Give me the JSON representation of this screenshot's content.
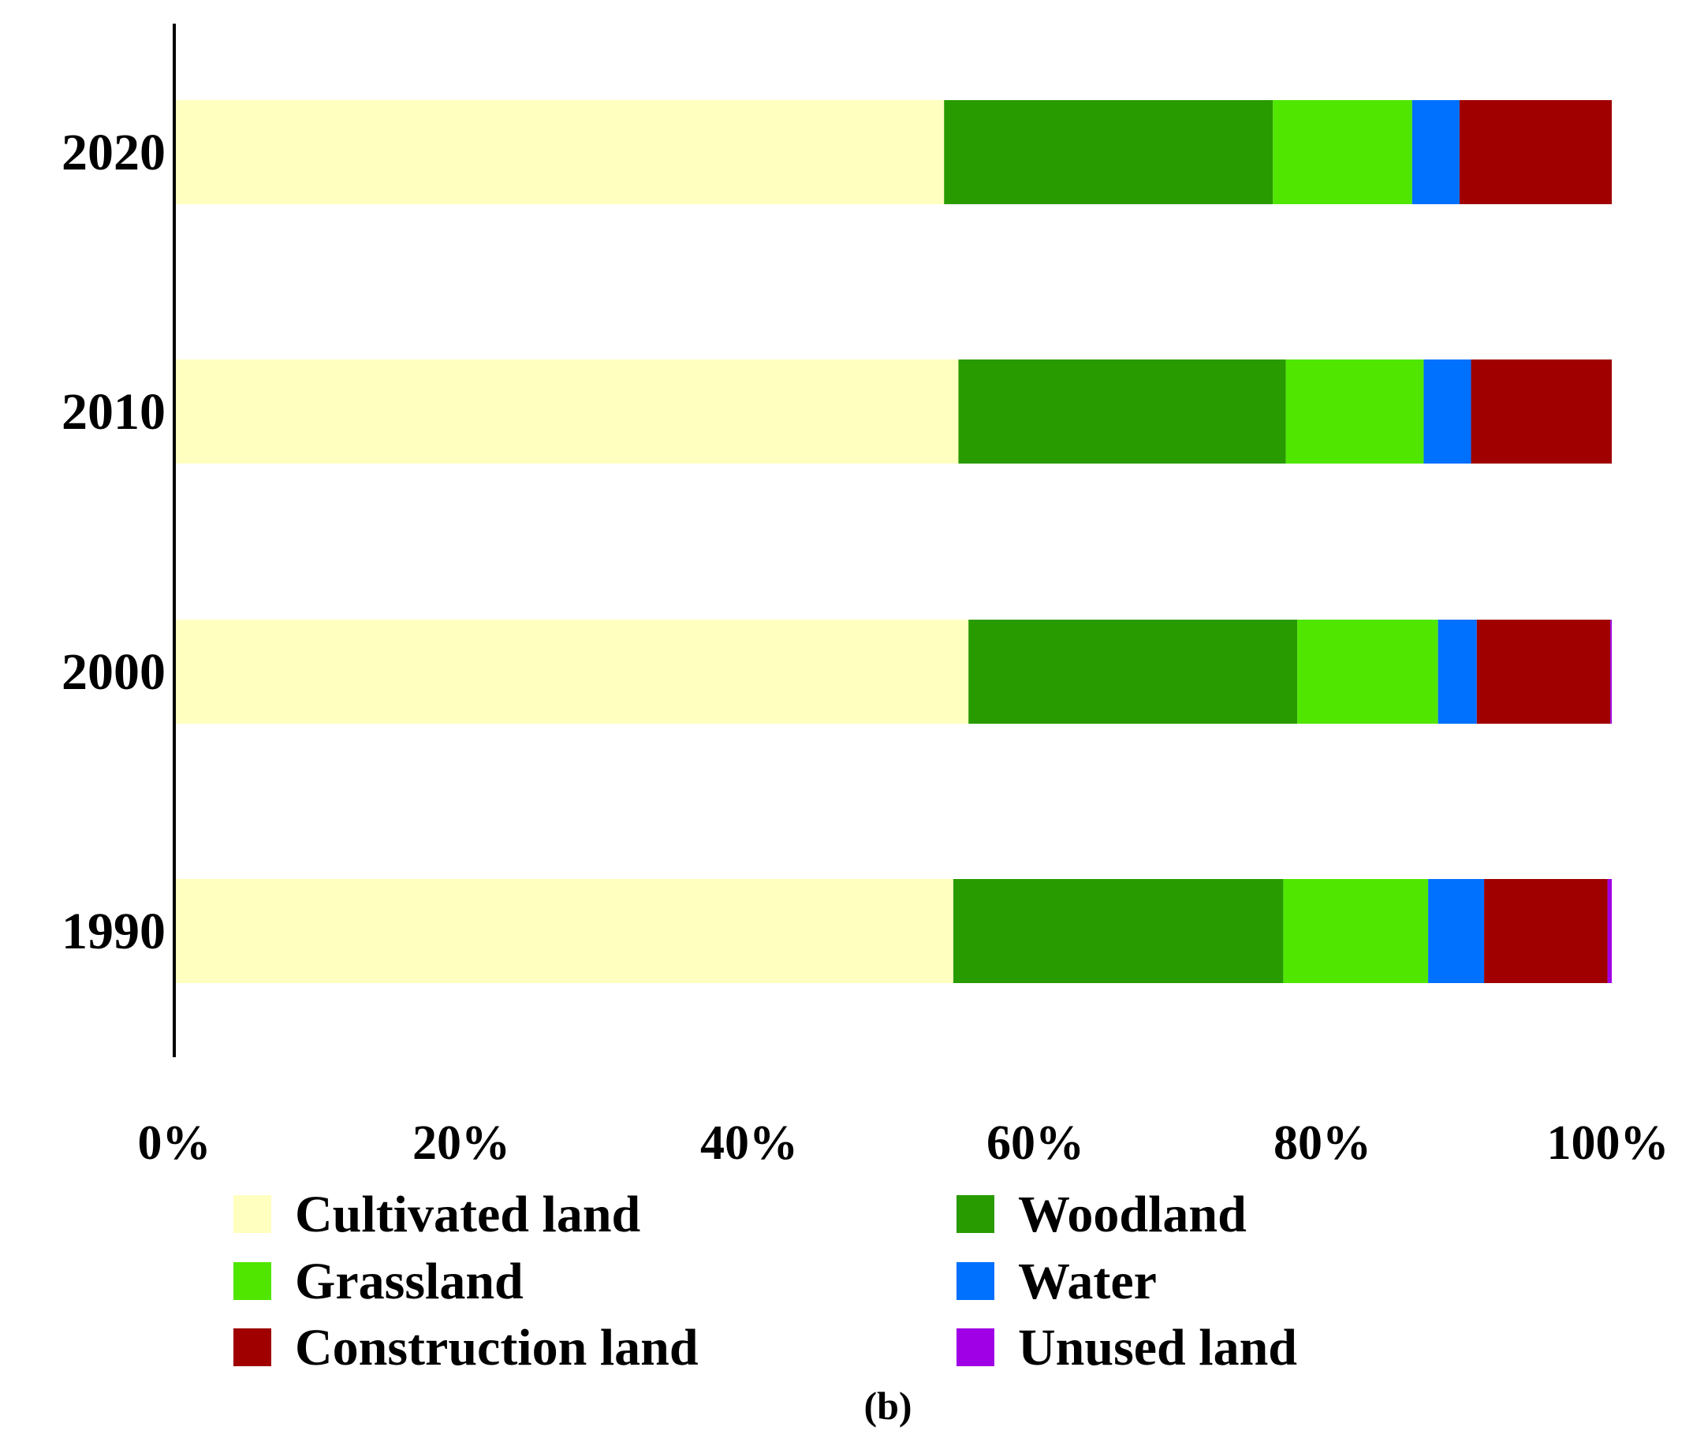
{
  "chart_data": {
    "type": "bar",
    "orientation": "horizontal",
    "stacked": true,
    "normalized": true,
    "categories": [
      "2020",
      "2010",
      "2000",
      "1990"
    ],
    "series": [
      {
        "name": "Cultivated land",
        "color": "#FFFFC0",
        "values": [
          53.5,
          54.5,
          55.2,
          54.2
        ]
      },
      {
        "name": "Woodland",
        "color": "#289B00",
        "values": [
          22.9,
          22.8,
          22.9,
          23.0
        ]
      },
      {
        "name": "Grassland",
        "color": "#50E600",
        "values": [
          9.7,
          9.6,
          9.8,
          10.1
        ]
      },
      {
        "name": "Water",
        "color": "#0070FF",
        "values": [
          3.3,
          3.3,
          2.7,
          3.9
        ]
      },
      {
        "name": "Construction land",
        "color": "#A00000",
        "values": [
          10.6,
          9.8,
          9.3,
          8.6
        ]
      },
      {
        "name": "Unused land",
        "color": "#A000E6",
        "values": [
          0.0,
          0.0,
          0.1,
          0.3
        ]
      }
    ],
    "xticks": [
      "0%",
      "20%",
      "40%",
      "60%",
      "80%",
      "100%"
    ],
    "xlim": [
      0,
      100
    ],
    "title": "",
    "xlabel": "",
    "ylabel": "",
    "legend_position": "bottom",
    "grid": false
  },
  "panel_label": "(b)"
}
